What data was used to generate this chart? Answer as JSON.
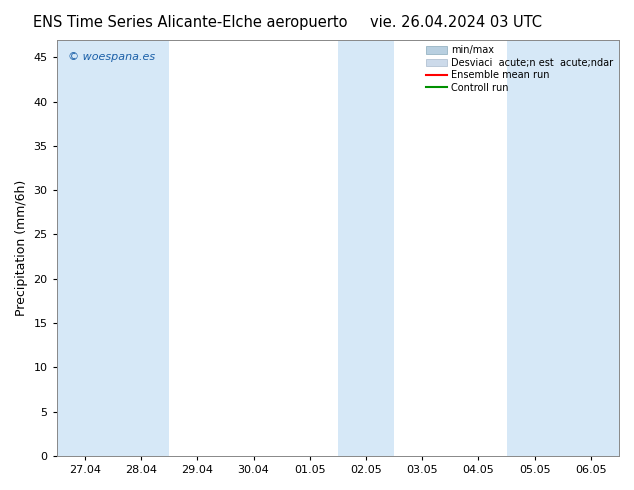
{
  "title_left": "ENS Time Series Alicante-Elche aeropuerto",
  "title_right": "vie. 26.04.2024 03 UTC",
  "ylabel": "Precipitation (mm/6h)",
  "ylim": [
    0,
    47
  ],
  "yticks": [
    0,
    5,
    10,
    15,
    20,
    25,
    30,
    35,
    40,
    45
  ],
  "xtick_labels": [
    "27.04",
    "28.04",
    "29.04",
    "30.04",
    "01.05",
    "02.05",
    "03.05",
    "04.05",
    "05.05",
    "06.05"
  ],
  "background_color": "#ffffff",
  "plot_bg_color": "#ffffff",
  "shaded_color": "#d6e8f7",
  "shaded_bands": [
    [
      0.0,
      1.0
    ],
    [
      1.0,
      2.0
    ],
    [
      5.0,
      6.0
    ],
    [
      8.0,
      9.0
    ]
  ],
  "watermark": "© woespana.es",
  "watermark_color": "#1a5fa8",
  "legend_label_1": "min/max",
  "legend_label_2": "Desviaci  acute;n est  acute;ndar",
  "legend_label_3": "Ensemble mean run",
  "legend_label_4": "Controll run",
  "legend_color_1": "#b8cfe0",
  "legend_color_2": "#ccdaea",
  "legend_color_3": "#ff0000",
  "legend_color_4": "#009000",
  "title_fontsize": 10.5,
  "tick_fontsize": 8,
  "ylabel_fontsize": 9,
  "border_color": "#888888",
  "n_ticks": 10,
  "xmin": 0,
  "xmax": 9
}
